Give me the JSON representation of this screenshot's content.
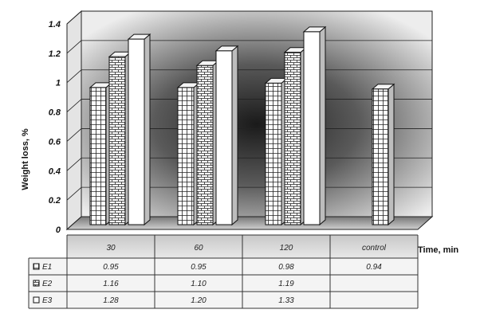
{
  "chart_data": {
    "type": "bar",
    "title": "",
    "ylabel": "Weight loss, %",
    "xlabel": "Time, min",
    "categories": [
      "30",
      "60",
      "120",
      "control"
    ],
    "ylim": [
      0,
      1.4
    ],
    "yticks": [
      "0",
      "0.2",
      "0.4",
      "0.6",
      "0.8",
      "1",
      "1.2",
      "1.4"
    ],
    "series": [
      {
        "name": "E1",
        "values": [
          0.95,
          0.95,
          0.98,
          0.94
        ],
        "labels": [
          "0.95",
          "0.95",
          "0.98",
          "0.94"
        ],
        "pattern": "grid",
        "color": "#ffffff"
      },
      {
        "name": "E2",
        "values": [
          1.16,
          1.1,
          1.19,
          null
        ],
        "labels": [
          "1.16",
          "1.10",
          "1.19",
          ""
        ],
        "pattern": "brick",
        "color": "#ffffff"
      },
      {
        "name": "E3",
        "values": [
          1.28,
          1.2,
          1.33,
          null
        ],
        "labels": [
          "1.28",
          "1.20",
          "1.33",
          ""
        ],
        "pattern": "none",
        "color": "#ffffff"
      }
    ],
    "grid": true,
    "data_table": true
  }
}
